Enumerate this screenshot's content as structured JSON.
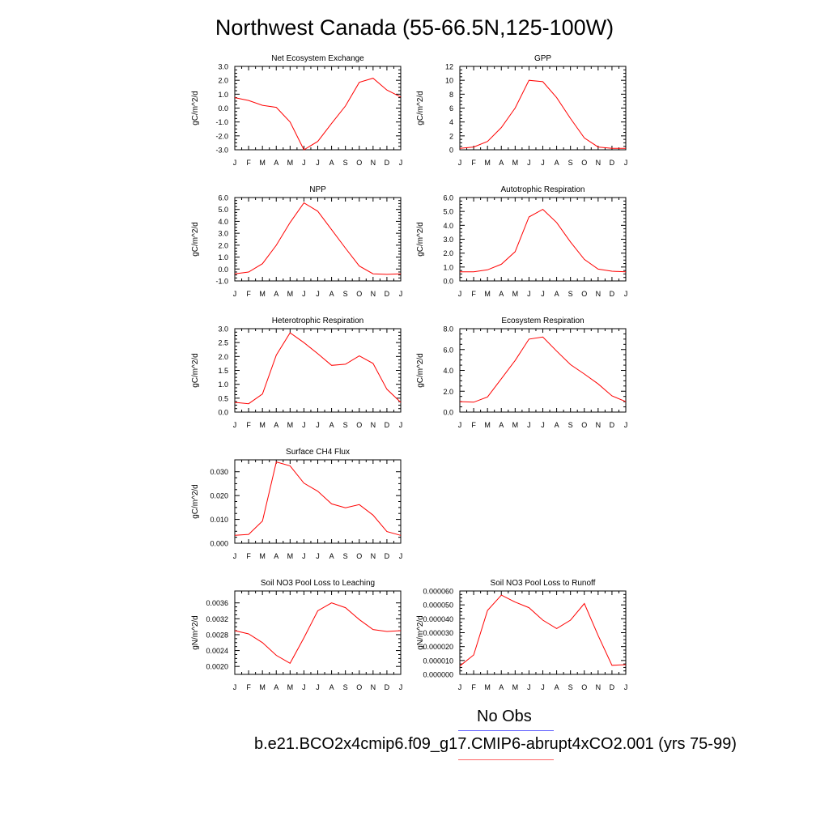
{
  "title": "Northwest Canada (55-66.5N,125-100W)",
  "month_labels": [
    "J",
    "F",
    "M",
    "A",
    "M",
    "J",
    "J",
    "A",
    "S",
    "O",
    "N",
    "D",
    "J"
  ],
  "line_color": "#ff0000",
  "legend": {
    "obs_label": "No Obs",
    "obs_color": "#6666ff",
    "model_label": "b.e21.BCO2x4cmip6.f09_g17.CMIP6-abrupt4xCO2.001 (yrs 75-99)",
    "model_color": "#ff6666"
  },
  "chart_data": [
    {
      "type": "line",
      "title": "Net Ecosystem Exchange",
      "ylabel": "gC/m^2/d",
      "ylim": [
        -3.0,
        3.0
      ],
      "yticks": [
        "3.0",
        "2.0",
        "1.0",
        "0.0",
        "-1.0",
        "-2.0",
        "-3.0"
      ],
      "ytick_values": [
        3.0,
        2.0,
        1.0,
        0.0,
        -1.0,
        -2.0,
        -3.0
      ],
      "values": [
        0.75,
        0.55,
        0.2,
        0.05,
        -1.0,
        -3.0,
        -2.4,
        -1.1,
        0.15,
        1.85,
        2.15,
        1.3,
        0.8
      ]
    },
    {
      "type": "line",
      "title": "GPP",
      "ylabel": "gC/m^2/d",
      "ylim": [
        0,
        12
      ],
      "yticks": [
        "12",
        "10",
        "8",
        "6",
        "4",
        "2",
        "0"
      ],
      "ytick_values": [
        12,
        10,
        8,
        6,
        4,
        2,
        0
      ],
      "values": [
        0.2,
        0.4,
        1.2,
        3.2,
        6.0,
        10.0,
        9.8,
        7.5,
        4.5,
        1.7,
        0.4,
        0.2,
        0.2
      ]
    },
    {
      "type": "line",
      "title": "NPP",
      "ylabel": "gC/m^2/d",
      "ylim": [
        -1.0,
        6.0
      ],
      "yticks": [
        "6.0",
        "5.0",
        "4.0",
        "3.0",
        "2.0",
        "1.0",
        "0.0",
        "-1.0"
      ],
      "ytick_values": [
        6.0,
        5.0,
        4.0,
        3.0,
        2.0,
        1.0,
        0.0,
        -1.0
      ],
      "values": [
        -0.4,
        -0.25,
        0.45,
        2.0,
        3.9,
        5.55,
        4.85,
        3.3,
        1.75,
        0.25,
        -0.4,
        -0.45,
        -0.4
      ]
    },
    {
      "type": "line",
      "title": "Autotrophic Respiration",
      "ylabel": "gC/m^2/d",
      "ylim": [
        0.0,
        6.0
      ],
      "yticks": [
        "6.0",
        "5.0",
        "4.0",
        "3.0",
        "2.0",
        "1.0",
        "0.0"
      ],
      "ytick_values": [
        6.0,
        5.0,
        4.0,
        3.0,
        2.0,
        1.0,
        0.0
      ],
      "values": [
        0.65,
        0.65,
        0.8,
        1.2,
        2.1,
        4.6,
        5.15,
        4.2,
        2.8,
        1.55,
        0.85,
        0.7,
        0.65
      ]
    },
    {
      "type": "line",
      "title": "Heterotrophic Respiration",
      "ylabel": "gC/m^2/d",
      "ylim": [
        0.0,
        3.0
      ],
      "yticks": [
        "3.0",
        "2.5",
        "2.0",
        "1.5",
        "1.0",
        "0.5",
        "0.0"
      ],
      "ytick_values": [
        3.0,
        2.5,
        2.0,
        1.5,
        1.0,
        0.5,
        0.0
      ],
      "values": [
        0.35,
        0.3,
        0.65,
        2.05,
        2.85,
        2.5,
        2.1,
        1.68,
        1.72,
        2.02,
        1.75,
        0.82,
        0.35
      ]
    },
    {
      "type": "line",
      "title": "Ecosystem Respiration",
      "ylabel": "gC/m^2/d",
      "ylim": [
        0.0,
        8.0
      ],
      "yticks": [
        "8.0",
        "6.0",
        "4.0",
        "2.0",
        "0.0"
      ],
      "ytick_values": [
        8.0,
        6.0,
        4.0,
        2.0,
        0.0
      ],
      "values": [
        1.0,
        0.95,
        1.45,
        3.2,
        4.95,
        7.0,
        7.2,
        5.85,
        4.55,
        3.65,
        2.7,
        1.55,
        1.0
      ]
    },
    {
      "type": "line",
      "title": "Surface CH4 Flux",
      "ylabel": "gC/m^2/d",
      "ylim": [
        0.0,
        0.035
      ],
      "yticks": [
        "0.030",
        "0.020",
        "0.010",
        "0.000"
      ],
      "ytick_values": [
        0.03,
        0.02,
        0.01,
        0.0
      ],
      "values": [
        0.0033,
        0.0037,
        0.0093,
        0.0341,
        0.0325,
        0.0252,
        0.0218,
        0.0165,
        0.0149,
        0.0162,
        0.0118,
        0.0049,
        0.0033
      ]
    },
    {
      "type": "line",
      "title": "Soil NO3 Pool Loss to Leaching",
      "ylabel": "gN/m^2/d",
      "ylim": [
        0.0018,
        0.0039
      ],
      "yticks": [
        "0.0036",
        "0.0032",
        "0.0028",
        "0.0024",
        "0.0020"
      ],
      "ytick_values": [
        0.0036,
        0.0032,
        0.0028,
        0.0024,
        0.002
      ],
      "values": [
        0.0029,
        0.00282,
        0.0026,
        0.00228,
        0.00208,
        0.00272,
        0.0034,
        0.0036,
        0.00348,
        0.00318,
        0.00293,
        0.00288,
        0.0029
      ]
    },
    {
      "type": "line",
      "title": "Soil NO3 Pool Loss to Runoff",
      "ylabel": "gN/m^2/d",
      "ylim": [
        0.0,
        6e-05
      ],
      "yticks": [
        "0.000060",
        "0.000050",
        "0.000040",
        "0.000030",
        "0.000020",
        "0.000010",
        "0.000000"
      ],
      "ytick_values": [
        6e-05,
        5e-05,
        4e-05,
        3e-05,
        2e-05,
        1e-05,
        0.0
      ],
      "values": [
        6e-06,
        1.4e-05,
        4.6e-05,
        5.7e-05,
        5.2e-05,
        4.8e-05,
        3.9e-05,
        3.3e-05,
        3.9e-05,
        5.1e-05,
        2.8e-05,
        6.5e-06,
        7e-06
      ]
    }
  ]
}
